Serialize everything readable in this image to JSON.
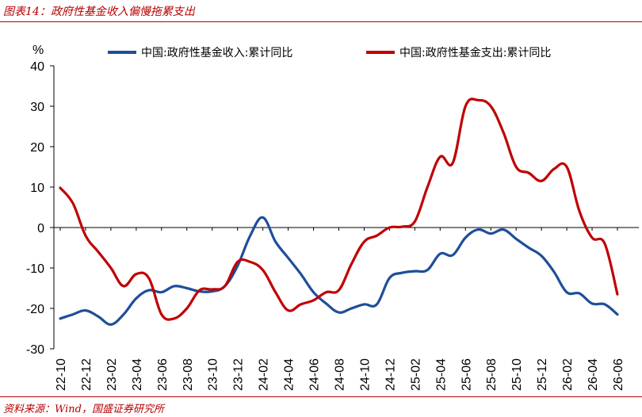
{
  "header": {
    "title": "图表14：政府性基金收入偏慢拖累支出"
  },
  "footer": {
    "source": "资料来源：Wind，国盛证券研究所"
  },
  "colors": {
    "series_1": "#1f4e9a",
    "series_2": "#c00000",
    "accent": "#b40000"
  },
  "chart_data": {
    "type": "line",
    "ylabel": "%",
    "ylim": [
      -30,
      40
    ],
    "yticks": [
      40,
      30,
      20,
      10,
      0,
      -10,
      -20,
      -30
    ],
    "grid": false,
    "legend_position": "top",
    "x_ticks": [
      "22-10",
      "22-12",
      "23-02",
      "23-04",
      "23-06",
      "23-08",
      "23-10",
      "23-12",
      "24-02",
      "24-04",
      "24-06",
      "24-08",
      "24-10",
      "24-12",
      "25-02",
      "25-04",
      "25-06",
      "25-08",
      "25-10",
      "25-12",
      "26-02",
      "26-04",
      "26-06"
    ],
    "x": [
      "22-10",
      "22-11",
      "22-12",
      "23-01",
      "23-02",
      "23-03",
      "23-04",
      "23-05",
      "23-06",
      "23-07",
      "23-08",
      "23-09",
      "23-10",
      "23-11",
      "23-12",
      "24-01",
      "24-02",
      "24-03",
      "24-04",
      "24-05",
      "24-06",
      "24-07",
      "24-08",
      "24-09",
      "24-10",
      "24-11",
      "24-12",
      "25-01",
      "25-02",
      "25-03",
      "25-04",
      "25-05",
      "25-06",
      "25-07",
      "25-08",
      "25-09",
      "25-10",
      "25-11",
      "25-12",
      "26-01",
      "26-02",
      "26-03",
      "26-04",
      "26-05",
      "26-06"
    ],
    "series": [
      {
        "name": "中国:政府性基金收入:累计同比",
        "values": [
          -22.5,
          -21.5,
          -20.5,
          -22,
          -24,
          -21.5,
          -17.5,
          -15.5,
          -16,
          -14.5,
          -15,
          -15.8,
          -15.8,
          -14.5,
          -9.5,
          -2,
          2.5,
          -3.5,
          -7.5,
          -11.5,
          -16,
          -18.8,
          -21,
          -20,
          -19,
          -19,
          -12.5,
          -11.2,
          -10.8,
          -10.5,
          -6.5,
          -6.8,
          -2.5,
          -0.5,
          -1.5,
          -0.5,
          -2.8,
          -5,
          -7,
          -11,
          -16,
          -16.3,
          -18.8,
          -19,
          -21.5
        ]
      },
      {
        "name": "中国:政府性基金支出:累计同比",
        "values": [
          9.8,
          6,
          -2,
          -6,
          -10,
          -14.5,
          -11.5,
          -12.5,
          -21.5,
          -22.5,
          -20,
          -15.5,
          -15.3,
          -14.5,
          -8.5,
          -8.5,
          -10.5,
          -16,
          -20.5,
          -19,
          -18,
          -16,
          -15.5,
          -9,
          -3.5,
          -2,
          0,
          0.2,
          1.5,
          10,
          17.5,
          16,
          30,
          31.5,
          30,
          23.5,
          15,
          13.5,
          11.5,
          14.5,
          15,
          4,
          -2.5,
          -4,
          -16.5
        ]
      }
    ]
  }
}
